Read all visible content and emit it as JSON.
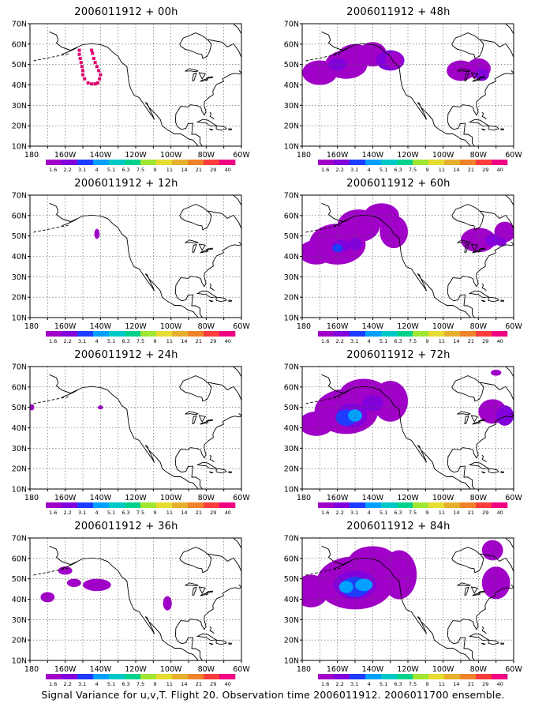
{
  "caption": "Signal Variance for u,v,T. Flight 20. Observation time 2006011912. 2006011700 ensemble.",
  "axes": {
    "lat_labels": [
      "70N",
      "60N",
      "50N",
      "40N",
      "30N",
      "20N",
      "10N"
    ],
    "lon_labels": [
      "180",
      "160W",
      "140W",
      "120W",
      "100W",
      "80W",
      "60W"
    ]
  },
  "colorbar": {
    "colors": [
      "#a000c8",
      "#8200dc",
      "#1e3cff",
      "#00a0ff",
      "#00c8c8",
      "#00d28c",
      "#a0e632",
      "#e6dc32",
      "#e6af2d",
      "#f08228",
      "#fa3c3c",
      "#f00082"
    ],
    "labels": [
      "1.6",
      "2.2",
      "3.1",
      "4",
      "5.1",
      "6.3",
      "7.5",
      "9",
      "11",
      "14",
      "21",
      "29",
      "40"
    ]
  },
  "panels": [
    {
      "title": "2006011912 + 00h"
    },
    {
      "title": "2006011912 + 48h"
    },
    {
      "title": "2006011912 + 12h"
    },
    {
      "title": "2006011912 + 60h"
    },
    {
      "title": "2006011912 + 24h"
    },
    {
      "title": "2006011912 + 72h"
    },
    {
      "title": "2006011912 + 36h"
    },
    {
      "title": "2006011912 + 84h"
    }
  ]
}
